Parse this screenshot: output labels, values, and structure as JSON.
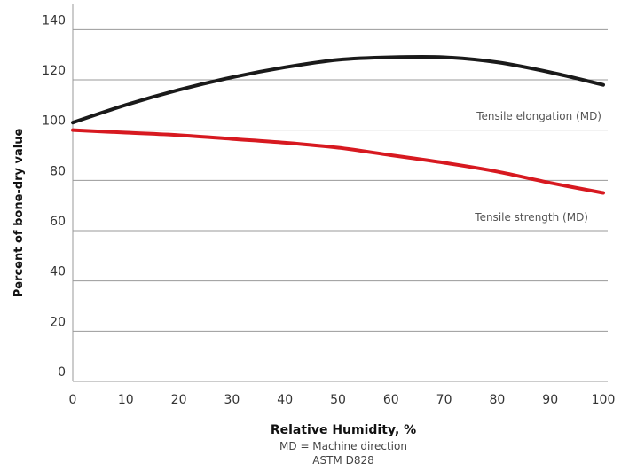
{
  "chart_data": {
    "type": "line",
    "title": "",
    "xlabel": "Relative Humidity, %",
    "ylabel": "Percent of bone-dry value",
    "xlim": [
      0,
      100
    ],
    "ylim": [
      0,
      150
    ],
    "x_ticks": [
      0,
      10,
      20,
      30,
      40,
      50,
      60,
      70,
      80,
      90,
      100
    ],
    "y_ticks": [
      0,
      20,
      40,
      60,
      80,
      100,
      120,
      140
    ],
    "grid": "horizontal",
    "notes": [
      "MD = Machine direction",
      "ASTM D828"
    ],
    "series": [
      {
        "name": "Tensile elongation (MD)",
        "color": "#1a1a1a",
        "x": [
          0,
          10,
          20,
          30,
          40,
          50,
          60,
          70,
          80,
          90,
          100
        ],
        "values": [
          103,
          110,
          116,
          121,
          125,
          128,
          129,
          129,
          127,
          123,
          118
        ]
      },
      {
        "name": "Tensile strength (MD)",
        "color": "#d71920",
        "x": [
          0,
          10,
          20,
          30,
          40,
          50,
          60,
          70,
          80,
          90,
          100
        ],
        "values": [
          100,
          99,
          98,
          96.5,
          95,
          93,
          90,
          87,
          83.5,
          79,
          75
        ]
      }
    ]
  }
}
